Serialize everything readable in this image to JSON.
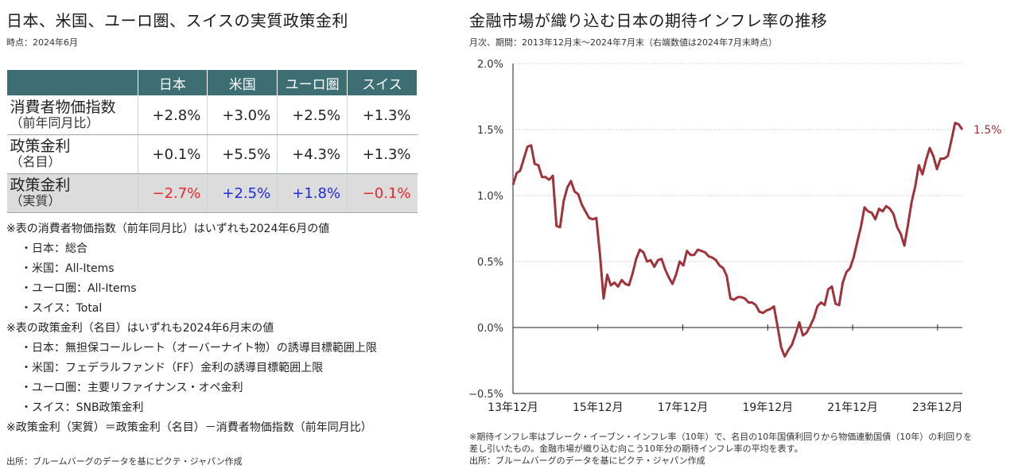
{
  "left_panel": {
    "title": "日本、米国、ユーロ圏、スイスの実質政策金利",
    "subtitle": "時点：2024年6月",
    "table": {
      "headers": [
        "",
        "日本",
        "米国",
        "ユーロ圏",
        "スイス"
      ],
      "rows": [
        {
          "label1": "消費者物価指数",
          "label2": "（前年同月比）",
          "values": [
            "+2.8%",
            "+3.0%",
            "+2.5%",
            "+1.3%"
          ],
          "colors": [
            "#222222",
            "#222222",
            "#222222",
            "#222222"
          ],
          "shaded": false
        },
        {
          "label1": "政策金利",
          "label2": "（名目）",
          "values": [
            "+0.1%",
            "+5.5%",
            "+4.3%",
            "+1.3%"
          ],
          "colors": [
            "#222222",
            "#222222",
            "#222222",
            "#222222"
          ],
          "shaded": false
        },
        {
          "label1": "政策金利",
          "label2": "（実質）",
          "values": [
            "−2.7%",
            "+2.5%",
            "+1.8%",
            "−0.1%"
          ],
          "colors": [
            "#e8262c",
            "#1f2cd6",
            "#1f2cd6",
            "#e8262c"
          ],
          "shaded": true
        }
      ]
    },
    "notes": [
      {
        "text": "※表の消費者物価指数（前年同月比）はいずれも2024年6月の値",
        "indent": false
      },
      {
        "text": "・日本：総合",
        "indent": true
      },
      {
        "text": "・米国：All-Items",
        "indent": true
      },
      {
        "text": "・ユーロ圏：All-Items",
        "indent": true
      },
      {
        "text": "・スイス：Total",
        "indent": true
      },
      {
        "text": "※表の政策金利（名目）はいずれも2024年6月末の値",
        "indent": false
      },
      {
        "text": "・日本：無担保コールレート（オーバーナイト物）の誘導目標範囲上限",
        "indent": true
      },
      {
        "text": "・米国：フェデラルファンド（FF）金利の誘導目標範囲上限",
        "indent": true
      },
      {
        "text": "・ユーロ圏：主要リファイナンス・オペ金利",
        "indent": true
      },
      {
        "text": "・スイス：SNB政策金利",
        "indent": true
      },
      {
        "text": "※政策金利（実質）＝政策金利（名目）－消費者物価指数（前年同月比）",
        "indent": false
      }
    ],
    "source": "出所：ブルームバーグのデータを基にピクテ・ジャパン作成"
  },
  "right_panel": {
    "title": "金融市場が織り込む日本の期待インフレ率の推移",
    "subtitle": "月次、期間：2013年12月末～2024年7月末（右端数値は2024年7月末時点）",
    "notes": [
      "※期待インフレ率はブレーク・イーブン・インフレ率（10年）で、名目の10年国債利回りから物価連動国債（10年）の利回りを",
      "差し引いたもの。金融市場が織り込む向こう10年分の期待インフレ率の平均を表す。",
      "出所：ブルームバーグのデータを基にピクテ・ジャパン作成"
    ]
  },
  "chart_data": {
    "type": "line",
    "title": "金融市場が織り込む日本の期待インフレ率の推移",
    "x_start": "2013-12",
    "x_end": "2024-07",
    "x_tick_labels": [
      "13年12月",
      "15年12月",
      "17年12月",
      "19年12月",
      "21年12月",
      "23年12月"
    ],
    "x_tick_dates": [
      "2013-12",
      "2015-12",
      "2017-12",
      "2019-12",
      "2021-12",
      "2023-12"
    ],
    "ylim": [
      -0.5,
      2.0
    ],
    "y_ticks": [
      -0.5,
      0.0,
      0.5,
      1.0,
      1.5,
      2.0
    ],
    "y_tick_labels": [
      "−0.5%",
      "0.0%",
      "0.5%",
      "1.0%",
      "1.5%",
      "2.0%"
    ],
    "grid": true,
    "line_color": "#a0323a",
    "end_label": "1.5%",
    "series": [
      {
        "values": [
          1.08,
          1.17,
          1.19,
          1.28,
          1.37,
          1.38,
          1.24,
          1.23,
          1.14,
          1.14,
          1.12,
          1.15,
          0.77,
          0.76,
          0.96,
          1.06,
          1.11,
          1.03,
          1.01,
          0.93,
          0.88,
          0.83,
          0.82,
          0.83,
          0.55,
          0.22,
          0.4,
          0.32,
          0.34,
          0.31,
          0.36,
          0.33,
          0.32,
          0.41,
          0.52,
          0.59,
          0.57,
          0.5,
          0.51,
          0.46,
          0.51,
          0.52,
          0.44,
          0.38,
          0.33,
          0.4,
          0.5,
          0.47,
          0.58,
          0.55,
          0.55,
          0.59,
          0.58,
          0.57,
          0.54,
          0.53,
          0.51,
          0.47,
          0.45,
          0.39,
          0.22,
          0.21,
          0.23,
          0.23,
          0.22,
          0.19,
          0.19,
          0.17,
          0.12,
          0.11,
          0.13,
          0.14,
          0.16,
          0.01,
          -0.15,
          -0.22,
          -0.17,
          -0.13,
          -0.05,
          0.04,
          -0.06,
          -0.04,
          0.01,
          0.07,
          0.16,
          0.19,
          0.17,
          0.29,
          0.31,
          0.18,
          0.17,
          0.34,
          0.42,
          0.45,
          0.53,
          0.65,
          0.76,
          0.91,
          0.88,
          0.87,
          0.82,
          0.9,
          0.88,
          0.92,
          0.9,
          0.86,
          0.76,
          0.71,
          0.62,
          0.78,
          0.95,
          1.07,
          1.23,
          1.16,
          1.27,
          1.36,
          1.3,
          1.2,
          1.28,
          1.28,
          1.3,
          1.42,
          1.55,
          1.54,
          1.5
        ]
      }
    ]
  }
}
